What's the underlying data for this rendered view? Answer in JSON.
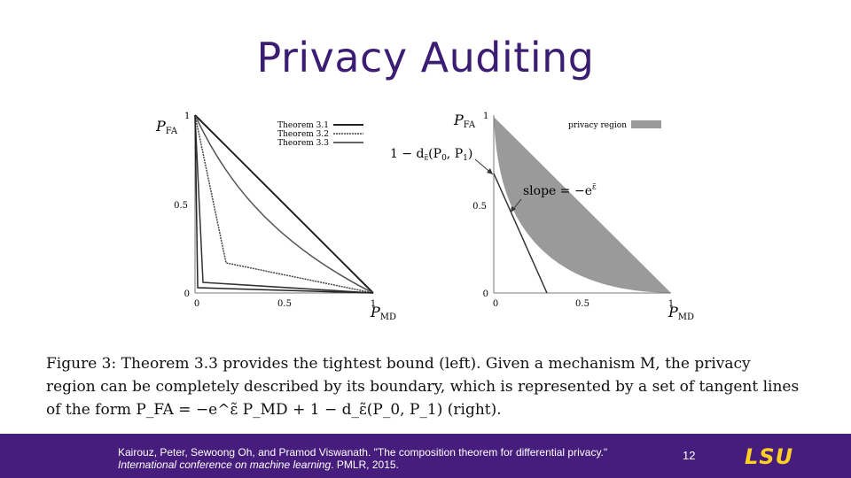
{
  "slide": {
    "title": "Privacy Auditing",
    "page_number": "12",
    "logo_text": "LSU"
  },
  "figure": {
    "left_plot": {
      "y_axis_label_main": "P",
      "y_axis_label_sub": "FA",
      "x_axis_label_main": "P",
      "x_axis_label_sub": "MD",
      "x_ticks": [
        "0",
        "0.5",
        "1"
      ],
      "y_ticks": [
        "0",
        "0.5",
        "1"
      ],
      "legend": [
        "Theorem 3.1",
        "Theorem 3.2",
        "Theorem 3.3"
      ]
    },
    "right_plot": {
      "y_axis_label_main": "P",
      "y_axis_label_sub": "FA",
      "x_axis_label_main": "P",
      "x_axis_label_sub": "MD",
      "x_ticks": [
        "0",
        "0.5",
        "1"
      ],
      "y_ticks": [
        "0",
        "0.5",
        "1"
      ],
      "legend": [
        "privacy region"
      ],
      "annotation_intercept": "1 − d",
      "annotation_intercept_sub": "ε̃",
      "annotation_intercept_args": "(P",
      "annotation_intercept_p0": "0",
      "annotation_intercept_mid": ", P",
      "annotation_intercept_p1": "1",
      "annotation_intercept_end": ")",
      "annotation_slope": "slope = −e",
      "annotation_slope_sup": "ε̃"
    }
  },
  "caption": {
    "line1": "Figure 3:  Theorem 3.3 provides the tightest bound (left).  Given a mechanism M, the privacy",
    "line2": "region can be completely described by its boundary, which is represented by a set of tangent lines",
    "line3": "of the form P_FA = −e^ε̃ P_MD + 1 − d_ε̃(P_0, P_1) (right)."
  },
  "citation": {
    "authors_title": "Kairouz, Peter, Sewoong Oh, and Pramod Viswanath. \"The composition theorem for differential privacy.\"",
    "venue": "International conference on machine learning",
    "publisher_year": ". PMLR, 2015."
  }
}
